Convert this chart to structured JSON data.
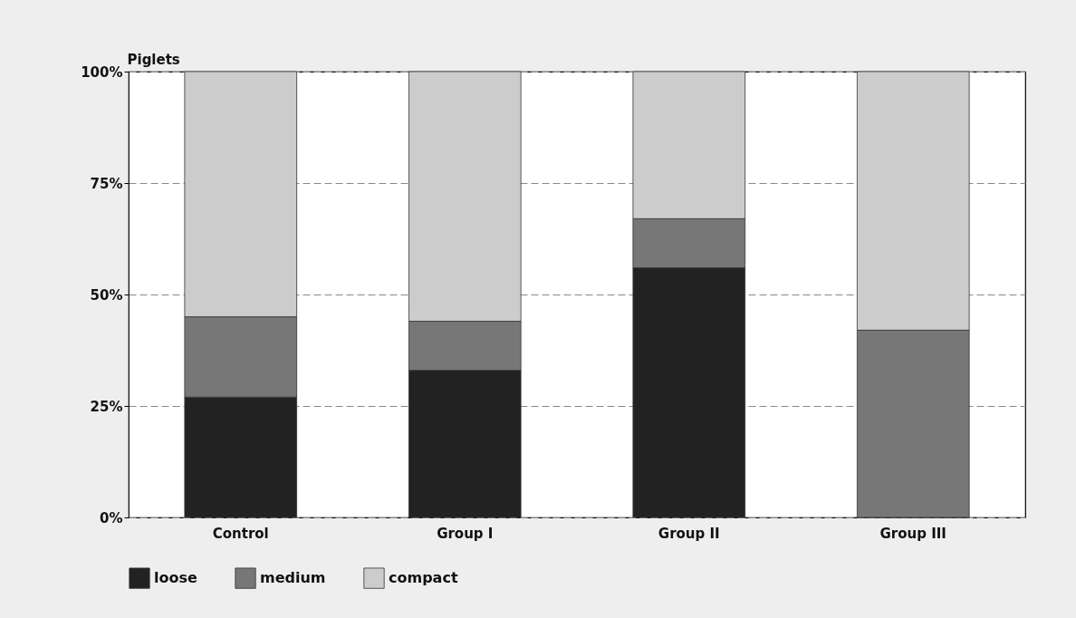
{
  "chart_data": {
    "type": "bar",
    "ylabel": "Piglets",
    "categories": [
      "Control",
      "Group I",
      "Group II",
      "Group III"
    ],
    "stacked": true,
    "series": [
      {
        "name": "loose",
        "color": "#222222",
        "values": [
          27,
          33,
          56,
          0
        ]
      },
      {
        "name": "medium",
        "color": "#777777",
        "values": [
          18,
          11,
          11,
          42
        ]
      },
      {
        "name": "compact",
        "color": "#cccccc",
        "values": [
          55,
          56,
          33,
          58
        ]
      }
    ],
    "ylim": [
      0,
      100
    ],
    "yticks": [
      {
        "value": 0,
        "label": "0%"
      },
      {
        "value": 25,
        "label": "25%"
      },
      {
        "value": 50,
        "label": "50%"
      },
      {
        "value": 75,
        "label": "75%"
      },
      {
        "value": 100,
        "label": "100%"
      }
    ],
    "grid": "y",
    "legend": "bottom"
  }
}
